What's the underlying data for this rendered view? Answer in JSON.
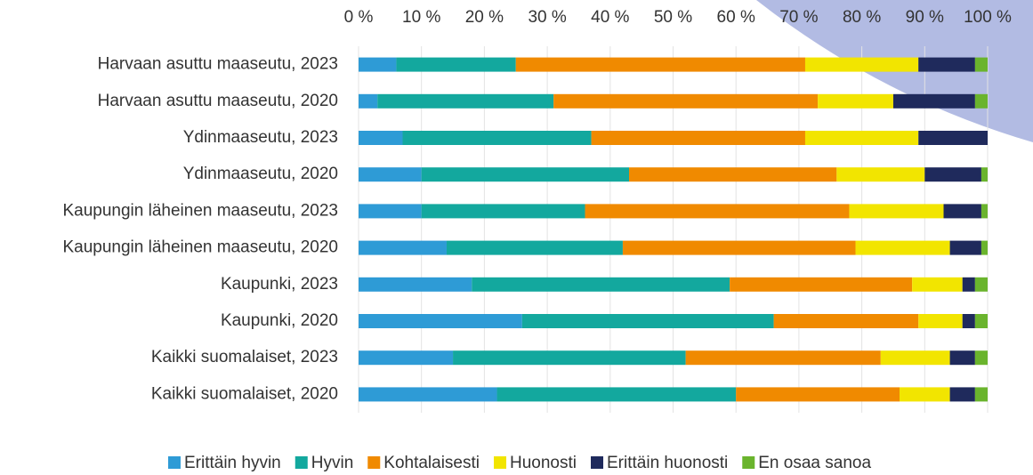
{
  "chart_data": {
    "type": "stacked-bar-horizontal",
    "categories": [
      "Harvaan asuttu maaseutu, 2023",
      "Harvaan asuttu maaseutu, 2020",
      "Ydinmaaseutu, 2023",
      "Ydinmaaseutu, 2020",
      "Kaupungin läheinen maaseutu, 2023",
      "Kaupungin läheinen maaseutu, 2020",
      "Kaupunki, 2023",
      "Kaupunki, 2020",
      "Kaikki suomalaiset, 2023",
      "Kaikki suomalaiset, 2020"
    ],
    "series": [
      {
        "name": "Erittäin hyvin",
        "color": "#2e9bd6",
        "values": [
          6,
          3,
          7,
          10,
          10,
          14,
          18,
          26,
          15,
          22
        ]
      },
      {
        "name": "Hyvin",
        "color": "#13a89e",
        "values": [
          19,
          28,
          30,
          33,
          26,
          28,
          41,
          40,
          37,
          38
        ]
      },
      {
        "name": "Kohtalaisesti",
        "color": "#f08a00",
        "values": [
          46,
          42,
          34,
          33,
          42,
          37,
          29,
          23,
          31,
          26
        ]
      },
      {
        "name": "Huonosti",
        "color": "#f2e500",
        "values": [
          18,
          12,
          18,
          14,
          15,
          15,
          8,
          7,
          11,
          8
        ]
      },
      {
        "name": "Erittäin huonosti",
        "color": "#1f2a5c",
        "values": [
          9,
          13,
          11,
          9,
          6,
          5,
          2,
          2,
          4,
          4
        ]
      },
      {
        "name": "En osaa sanoa",
        "color": "#6ab42d",
        "values": [
          2,
          2,
          0,
          1,
          1,
          1,
          2,
          2,
          2,
          2
        ]
      }
    ],
    "xlim": [
      0,
      100
    ],
    "xticks": [
      {
        "value": 0,
        "label": "0 %"
      },
      {
        "value": 10,
        "label": "10 %"
      },
      {
        "value": 20,
        "label": "20 %"
      },
      {
        "value": 30,
        "label": "30 %"
      },
      {
        "value": 40,
        "label": "40 %"
      },
      {
        "value": 50,
        "label": "50 %"
      },
      {
        "value": 60,
        "label": "60 %"
      },
      {
        "value": 70,
        "label": "70 %"
      },
      {
        "value": 80,
        "label": "80 %"
      },
      {
        "value": 90,
        "label": "90 %"
      },
      {
        "value": 100,
        "label": "100 %"
      }
    ],
    "grid": true,
    "legend": "bottom"
  }
}
